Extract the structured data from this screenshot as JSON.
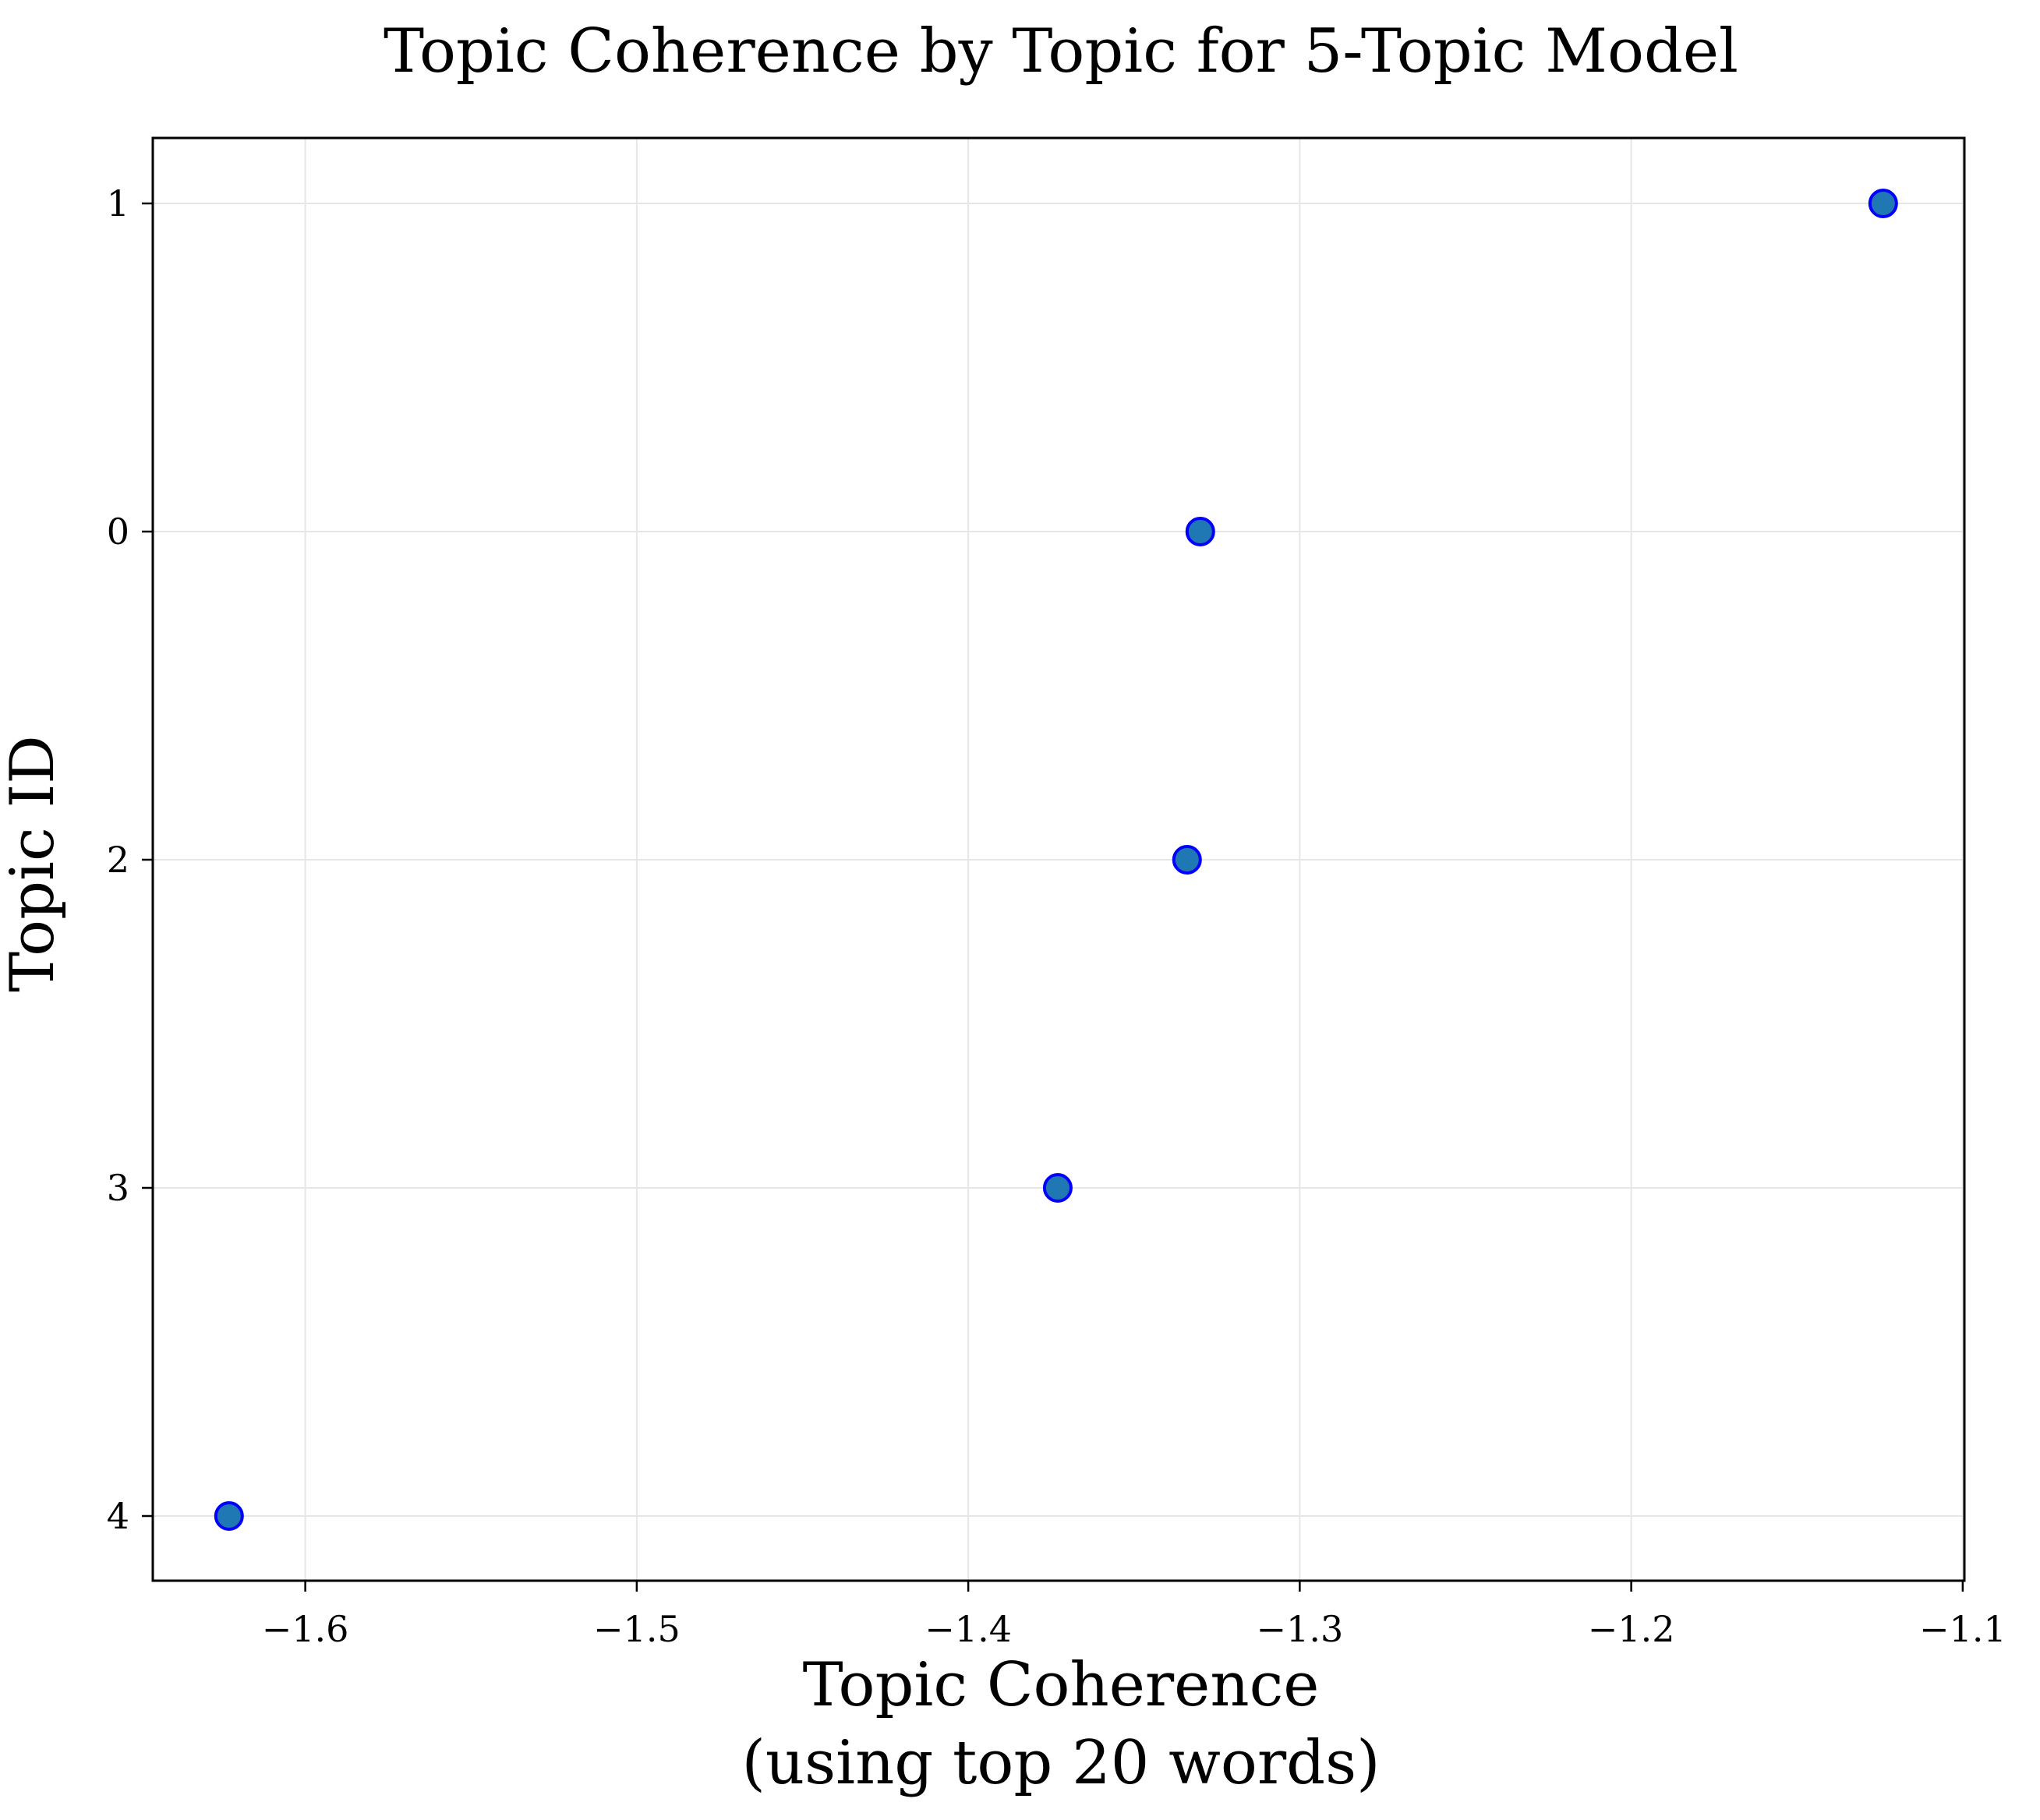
{
  "chart_data": {
    "type": "scatter",
    "title": "Topic Coherence by Topic for 5-Topic Model",
    "xlabel_lines": [
      "Topic Coherence",
      "(using top 20 words)"
    ],
    "ylabel": "Topic ID",
    "xlim": [
      -1.646,
      -1.0995
    ],
    "x_ticks": [
      -1.6,
      -1.5,
      -1.4,
      -1.3,
      -1.2,
      -1.1
    ],
    "x_tick_labels": [
      "−1.6",
      "−1.5",
      "−1.4",
      "−1.3",
      "−1.2",
      "−1.1"
    ],
    "y_categories": [
      "1",
      "0",
      "2",
      "3",
      "4"
    ],
    "grid": true,
    "legend": "none",
    "marker_fill": "#1f77b4",
    "marker_edge": "#0000ff",
    "points": [
      {
        "topic": "1",
        "x": -1.124
      },
      {
        "topic": "0",
        "x": -1.33
      },
      {
        "topic": "2",
        "x": -1.334
      },
      {
        "topic": "3",
        "x": -1.373
      },
      {
        "topic": "4",
        "x": -1.623
      }
    ]
  }
}
